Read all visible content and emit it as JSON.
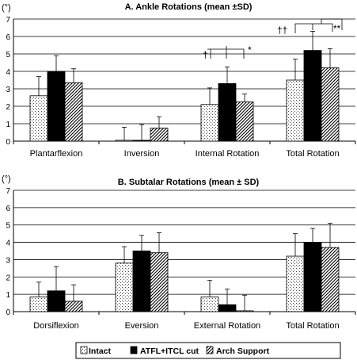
{
  "chart_data": [
    {
      "type": "bar",
      "title": "A. Ankle Rotations (mean ±SD)",
      "ylabel": "(°)",
      "ylim": [
        0,
        7
      ],
      "yticks": [
        "0",
        "1",
        "2",
        "3",
        "4",
        "5",
        "6",
        "7"
      ],
      "grid": true,
      "categories": [
        "Plantarflexion",
        "Inversion",
        "Internal Rotation",
        "Total Rotation"
      ],
      "series": [
        {
          "name": "Intact",
          "values": [
            2.6,
            0.05,
            2.1,
            3.5
          ],
          "sd": [
            1.1,
            0.75,
            0.95,
            1.2
          ]
        },
        {
          "name": "ATFL+ITCL cut",
          "values": [
            4.0,
            0.05,
            3.3,
            5.2
          ],
          "sd": [
            0.9,
            0.9,
            0.95,
            1.1
          ]
        },
        {
          "name": "Arch Support",
          "values": [
            3.35,
            0.75,
            2.25,
            4.2
          ],
          "sd": [
            0.8,
            0.65,
            0.45,
            1.1
          ]
        }
      ],
      "annotations": [
        {
          "category": "Internal Rotation",
          "symbol": "†"
        },
        {
          "category": "Internal Rotation",
          "symbol": "*"
        },
        {
          "category": "Total Rotation",
          "symbol": "††"
        },
        {
          "category": "Total Rotation",
          "symbol": "**"
        }
      ]
    },
    {
      "type": "bar",
      "title": "B. Subtalar Rotations (mean ± SD)",
      "ylabel": "(°)",
      "ylim": [
        0,
        7
      ],
      "yticks": [
        "0",
        "1",
        "2",
        "3",
        "4",
        "5",
        "6",
        "7"
      ],
      "grid": true,
      "categories": [
        "Dorsiflexion",
        "Eversion",
        "External Rotation",
        "Total Rotation"
      ],
      "series": [
        {
          "name": "Intact",
          "values": [
            0.85,
            2.8,
            0.85,
            3.2
          ],
          "sd": [
            0.85,
            0.95,
            0.95,
            1.3
          ]
        },
        {
          "name": "ATFL+ITCL cut",
          "values": [
            1.2,
            3.5,
            0.4,
            4.0
          ],
          "sd": [
            1.4,
            0.9,
            0.9,
            0.8
          ]
        },
        {
          "name": "Arch Support",
          "values": [
            0.6,
            3.4,
            0.05,
            3.7
          ],
          "sd": [
            0.95,
            1.15,
            0.9,
            1.4
          ]
        }
      ]
    }
  ],
  "legend": {
    "placement": "bottom",
    "items": [
      "Intact",
      "ATFL+ITCL cut",
      "Arch Support"
    ]
  }
}
